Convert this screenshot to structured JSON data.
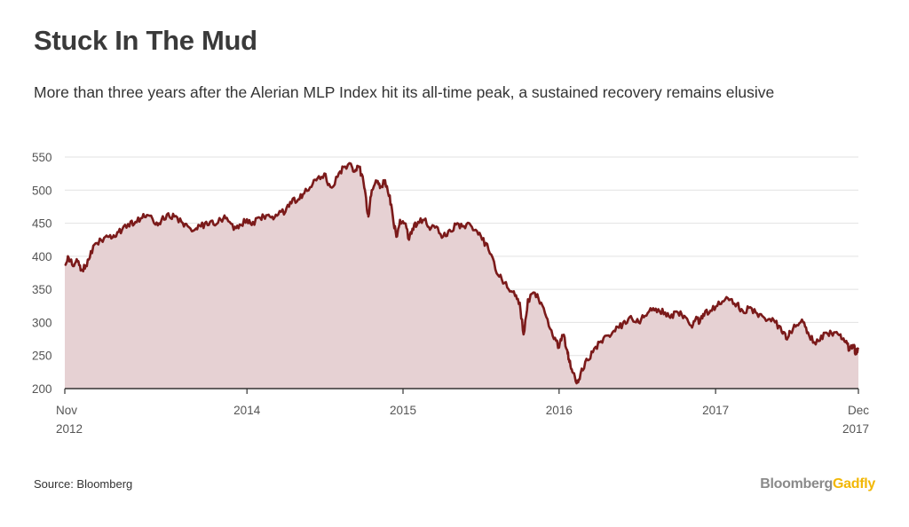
{
  "title": "Stuck In The Mud",
  "subtitle": "More than three years after the Alerian MLP Index hit its all-time peak, a sustained recovery remains elusive",
  "source": "Source: Bloomberg",
  "logo": {
    "part1": "Bloomberg",
    "part2": "Gadfly"
  },
  "colors": {
    "line": "#7b1a1a",
    "fill": "#e6d1d3",
    "grid": "#e2e2e2",
    "axis": "#333333"
  },
  "chart_data": {
    "type": "area",
    "title": "Stuck In The Mud",
    "xlabel": "",
    "ylabel": "",
    "ylim": [
      200,
      550
    ],
    "yticks": [
      200,
      250,
      300,
      350,
      400,
      450,
      500,
      550
    ],
    "xlim": [
      "2012-11-01",
      "2017-12-01"
    ],
    "xticks": [
      {
        "date": "2012-11-01",
        "line1": "Nov",
        "line2": "2012"
      },
      {
        "date": "2014-01-01",
        "line1": "2014",
        "line2": ""
      },
      {
        "date": "2015-01-01",
        "line1": "2015",
        "line2": ""
      },
      {
        "date": "2016-01-01",
        "line1": "2016",
        "line2": ""
      },
      {
        "date": "2017-01-01",
        "line1": "2017",
        "line2": ""
      },
      {
        "date": "2017-12-01",
        "line1": "Dec",
        "line2": "2017"
      }
    ],
    "grid": true,
    "legend": "none",
    "series": [
      {
        "name": "",
        "points": [
          [
            "2012-11-01",
            388
          ],
          [
            "2012-11-10",
            398
          ],
          [
            "2012-11-20",
            385
          ],
          [
            "2012-12-01",
            392
          ],
          [
            "2012-12-10",
            380
          ],
          [
            "2012-12-20",
            386
          ],
          [
            "2013-01-01",
            408
          ],
          [
            "2013-01-15",
            420
          ],
          [
            "2013-02-01",
            428
          ],
          [
            "2013-02-15",
            432
          ],
          [
            "2013-03-01",
            430
          ],
          [
            "2013-03-15",
            440
          ],
          [
            "2013-04-01",
            445
          ],
          [
            "2013-04-15",
            452
          ],
          [
            "2013-05-01",
            458
          ],
          [
            "2013-05-15",
            462
          ],
          [
            "2013-06-01",
            448
          ],
          [
            "2013-06-15",
            455
          ],
          [
            "2013-07-01",
            465
          ],
          [
            "2013-07-15",
            460
          ],
          [
            "2013-08-01",
            452
          ],
          [
            "2013-08-15",
            446
          ],
          [
            "2013-09-01",
            440
          ],
          [
            "2013-09-15",
            445
          ],
          [
            "2013-10-01",
            447
          ],
          [
            "2013-10-15",
            448
          ],
          [
            "2013-11-01",
            455
          ],
          [
            "2013-11-15",
            458
          ],
          [
            "2013-12-01",
            440
          ],
          [
            "2013-12-15",
            448
          ],
          [
            "2014-01-01",
            456
          ],
          [
            "2014-01-15",
            452
          ],
          [
            "2014-02-01",
            458
          ],
          [
            "2014-02-15",
            462
          ],
          [
            "2014-03-01",
            460
          ],
          [
            "2014-03-15",
            463
          ],
          [
            "2014-04-01",
            467
          ],
          [
            "2014-04-15",
            480
          ],
          [
            "2014-05-01",
            486
          ],
          [
            "2014-05-15",
            495
          ],
          [
            "2014-06-01",
            505
          ],
          [
            "2014-06-15",
            518
          ],
          [
            "2014-07-01",
            525
          ],
          [
            "2014-07-15",
            505
          ],
          [
            "2014-08-01",
            520
          ],
          [
            "2014-08-15",
            535
          ],
          [
            "2014-09-01",
            540
          ],
          [
            "2014-09-10",
            528
          ],
          [
            "2014-09-20",
            535
          ],
          [
            "2014-10-01",
            510
          ],
          [
            "2014-10-08",
            475
          ],
          [
            "2014-10-12",
            460
          ],
          [
            "2014-10-20",
            500
          ],
          [
            "2014-11-01",
            512
          ],
          [
            "2014-11-10",
            506
          ],
          [
            "2014-11-20",
            515
          ],
          [
            "2014-12-01",
            492
          ],
          [
            "2014-12-10",
            450
          ],
          [
            "2014-12-18",
            430
          ],
          [
            "2014-12-25",
            455
          ],
          [
            "2015-01-05",
            450
          ],
          [
            "2015-01-15",
            425
          ],
          [
            "2015-01-25",
            440
          ],
          [
            "2015-02-05",
            452
          ],
          [
            "2015-02-20",
            455
          ],
          [
            "2015-03-05",
            440
          ],
          [
            "2015-03-20",
            445
          ],
          [
            "2015-04-05",
            430
          ],
          [
            "2015-04-20",
            440
          ],
          [
            "2015-05-05",
            448
          ],
          [
            "2015-05-20",
            445
          ],
          [
            "2015-06-05",
            450
          ],
          [
            "2015-06-20",
            440
          ],
          [
            "2015-07-05",
            425
          ],
          [
            "2015-07-20",
            410
          ],
          [
            "2015-08-05",
            380
          ],
          [
            "2015-08-20",
            365
          ],
          [
            "2015-09-05",
            350
          ],
          [
            "2015-09-20",
            340
          ],
          [
            "2015-10-01",
            330
          ],
          [
            "2015-10-10",
            282
          ],
          [
            "2015-10-20",
            335
          ],
          [
            "2015-11-05",
            345
          ],
          [
            "2015-11-20",
            330
          ],
          [
            "2015-12-05",
            305
          ],
          [
            "2015-12-20",
            275
          ],
          [
            "2016-01-01",
            262
          ],
          [
            "2016-01-10",
            280
          ],
          [
            "2016-01-20",
            258
          ],
          [
            "2016-01-25",
            240
          ],
          [
            "2016-02-01",
            225
          ],
          [
            "2016-02-11",
            208
          ],
          [
            "2016-02-20",
            222
          ],
          [
            "2016-03-05",
            245
          ],
          [
            "2016-03-20",
            255
          ],
          [
            "2016-04-05",
            270
          ],
          [
            "2016-04-20",
            280
          ],
          [
            "2016-05-05",
            285
          ],
          [
            "2016-05-20",
            292
          ],
          [
            "2016-06-05",
            298
          ],
          [
            "2016-06-20",
            305
          ],
          [
            "2016-07-05",
            300
          ],
          [
            "2016-07-20",
            310
          ],
          [
            "2016-08-05",
            318
          ],
          [
            "2016-08-20",
            320
          ],
          [
            "2016-09-05",
            315
          ],
          [
            "2016-09-20",
            312
          ],
          [
            "2016-10-05",
            315
          ],
          [
            "2016-10-20",
            310
          ],
          [
            "2016-11-05",
            295
          ],
          [
            "2016-11-15",
            305
          ],
          [
            "2016-11-25",
            300
          ],
          [
            "2016-12-05",
            310
          ],
          [
            "2016-12-20",
            318
          ],
          [
            "2017-01-05",
            325
          ],
          [
            "2017-01-20",
            332
          ],
          [
            "2017-02-05",
            335
          ],
          [
            "2017-02-20",
            328
          ],
          [
            "2017-03-05",
            318
          ],
          [
            "2017-03-20",
            322
          ],
          [
            "2017-04-05",
            315
          ],
          [
            "2017-04-20",
            310
          ],
          [
            "2017-05-05",
            305
          ],
          [
            "2017-05-20",
            300
          ],
          [
            "2017-06-05",
            285
          ],
          [
            "2017-06-15",
            275
          ],
          [
            "2017-06-25",
            285
          ],
          [
            "2017-07-10",
            296
          ],
          [
            "2017-07-25",
            300
          ],
          [
            "2017-08-05",
            285
          ],
          [
            "2017-08-20",
            270
          ],
          [
            "2017-09-05",
            280
          ],
          [
            "2017-09-20",
            283
          ],
          [
            "2017-10-05",
            285
          ],
          [
            "2017-10-20",
            282
          ],
          [
            "2017-11-01",
            270
          ],
          [
            "2017-11-10",
            258
          ],
          [
            "2017-11-20",
            262
          ],
          [
            "2017-11-25",
            252
          ],
          [
            "2017-12-01",
            262
          ]
        ]
      }
    ]
  }
}
